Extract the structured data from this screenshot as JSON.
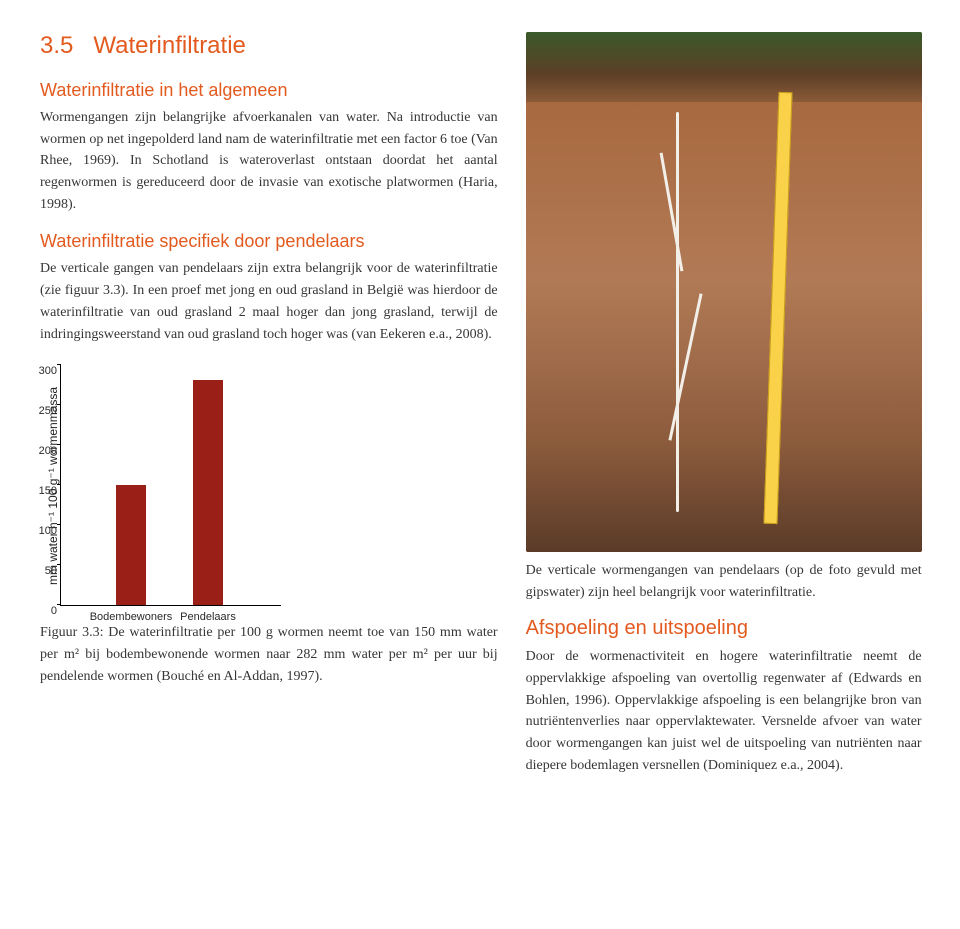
{
  "section": {
    "number": "3.5",
    "title": "Waterinfiltratie"
  },
  "block1": {
    "heading": "Waterinfiltratie in het algemeen",
    "text": "Wormengangen zijn belangrijke afvoerkanalen van water. Na introductie van wormen op net ingepolderd land nam de waterinfiltratie met een factor 6 toe (Van Rhee, 1969). In Schotland is wateroverlast ontstaan doordat het aantal regenwormen is gereduceerd door de invasie van exotische platwormen (Haria, 1998)."
  },
  "block2": {
    "heading": "Waterinfiltratie specifiek door pendelaars",
    "text": "De verticale gangen van pendelaars zijn extra belangrijk voor de waterinfiltratie (zie figuur 3.3). In een proef met jong en oud grasland in België was hierdoor de waterinfiltratie van oud grasland 2 maal hoger dan jong grasland, terwijl de indringingsweerstand van oud grasland toch hoger was (van Eekeren e.a., 2008)."
  },
  "chart": {
    "type": "bar",
    "ylabel": "mm water h⁻¹ 100 g⁻¹ wormenmassa",
    "ylim": [
      0,
      300
    ],
    "ytick_step": 50,
    "yticks": [
      0,
      50,
      100,
      150,
      200,
      250,
      300
    ],
    "bar_color": "#991f17",
    "background_color": "#ffffff",
    "bars": [
      {
        "label": "Bodembewoners",
        "value": 150,
        "x_pct": 25
      },
      {
        "label": "Pendelaars",
        "value": 282,
        "x_pct": 60
      }
    ]
  },
  "figure_caption": "Figuur 3.3: De waterinfiltratie per 100 g wormen neemt toe van 150 mm water per m² bij bodembewonende wormen naar 282 mm water per m² per uur bij pendelende wormen (Bouché en Al-Addan, 1997).",
  "photo_caption": "De verticale wormengangen van pendelaars (op de foto gevuld met gipswater) zijn heel belangrijk voor waterinfiltratie.",
  "block3": {
    "heading": "Afspoeling en uitspoeling",
    "text": "Door de wormenactiviteit en hogere waterinfiltratie neemt de oppervlakkige afspoeling van overtollig regenwater af (Edwards en Bohlen, 1996). Oppervlakkige afspoeling is een belangrijke bron van nutriëntenverlies naar oppervlaktewater. Versnelde afvoer van water door wormengangen kan juist wel de uitspoeling van nutriënten naar diepere bodemlagen versnellen (Dominiquez e.a., 2004)."
  }
}
